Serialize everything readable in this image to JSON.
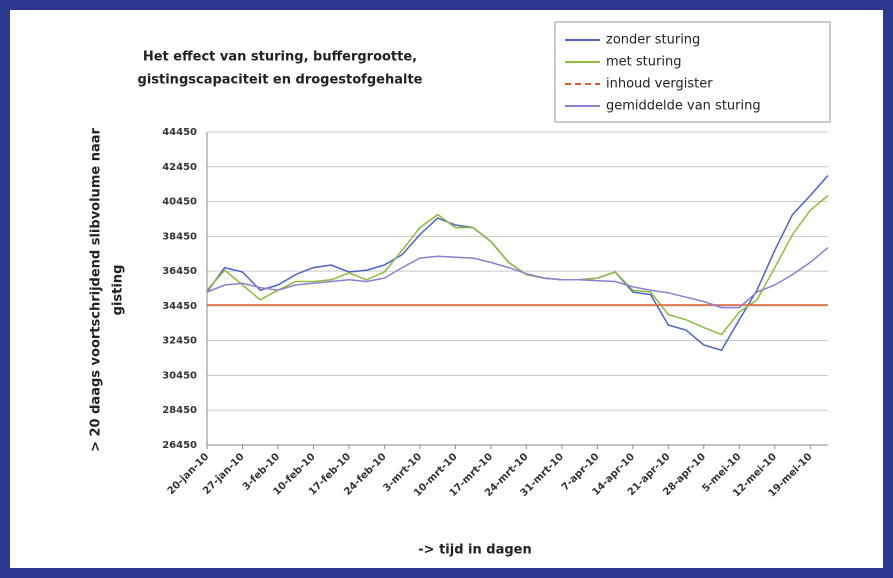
{
  "chart_data": {
    "type": "line",
    "title_lines": [
      "Het effect van sturing, buffergrootte,",
      "gistingscapaciteit en drogestofgehalte"
    ],
    "ylabel_lines": [
      "> 20 daags voortschrijdend slibvolume naar",
      "gisting"
    ],
    "xlabel": "-> tijd in dagen",
    "categories": [
      "20-jan-10",
      null,
      "27-jan-10",
      null,
      "3-feb-10",
      null,
      "10-feb-10",
      null,
      "17-feb-10",
      null,
      "24-feb-10",
      null,
      "3-mrt-10",
      null,
      "10-mrt-10",
      null,
      "17-mrt-10",
      null,
      "24-mrt-10",
      null,
      "31-mrt-10",
      null,
      "7-apr-10",
      null,
      "14-apr-10",
      null,
      "21-apr-10",
      null,
      "28-apr-10",
      null,
      "5-mei-10",
      null,
      "12-mei-10",
      null,
      "19-mei-10",
      null
    ],
    "series": [
      {
        "name": "zonder sturing",
        "color": "#4b63c9",
        "dash": false,
        "values": [
          35250,
          36650,
          36400,
          35350,
          35650,
          36250,
          36650,
          36800,
          36400,
          36500,
          36800,
          37400,
          38550,
          39500,
          39100,
          38950,
          38150,
          36950,
          36250,
          36050,
          35950,
          35950,
          36050,
          36400,
          35250,
          35100,
          33350,
          33050,
          32200,
          31900,
          33650,
          35350,
          37650,
          39700,
          40800,
          41950
        ]
      },
      {
        "name": "met sturing",
        "color": "#8dbb3c",
        "dash": false,
        "values": [
          35350,
          36500,
          35650,
          34800,
          35350,
          35850,
          35850,
          35950,
          36350,
          35950,
          36400,
          37650,
          38950,
          39700,
          38950,
          38950,
          38150,
          36950,
          36250,
          36050,
          35950,
          35950,
          36050,
          36400,
          35350,
          35250,
          33950,
          33650,
          33200,
          32800,
          34100,
          34800,
          36650,
          38550,
          39950,
          40800
        ]
      },
      {
        "name": "inhoud vergister",
        "color": "#e0602c",
        "dash": true,
        "values": [
          34500,
          34500,
          34500,
          34500,
          34500,
          34500,
          34500,
          34500,
          34500,
          34500,
          34500,
          34500,
          34500,
          34500,
          34500,
          34500,
          34500,
          34500,
          34500,
          34500,
          34500,
          34500,
          34500,
          34500,
          34500,
          34500,
          34500,
          34500,
          34500,
          34500,
          34500,
          34500,
          34500,
          34500,
          34500,
          34500
        ]
      },
      {
        "name": "gemiddelde van sturing",
        "color": "#8a7fd0",
        "dash": false,
        "values": [
          35250,
          35650,
          35750,
          35500,
          35350,
          35650,
          35750,
          35850,
          35950,
          35850,
          36050,
          36650,
          37200,
          37300,
          37250,
          37200,
          36950,
          36650,
          36300,
          36050,
          35950,
          35950,
          35900,
          35850,
          35550,
          35350,
          35200,
          34950,
          34700,
          34350,
          34350,
          35250,
          35650,
          36250,
          36950,
          37800
        ]
      }
    ],
    "ylim": [
      26450,
      44450
    ],
    "yticks": [
      26450,
      28450,
      30450,
      32450,
      34450,
      36450,
      38450,
      40450,
      42450,
      44450
    ],
    "grid": true,
    "legend": "upper right"
  }
}
